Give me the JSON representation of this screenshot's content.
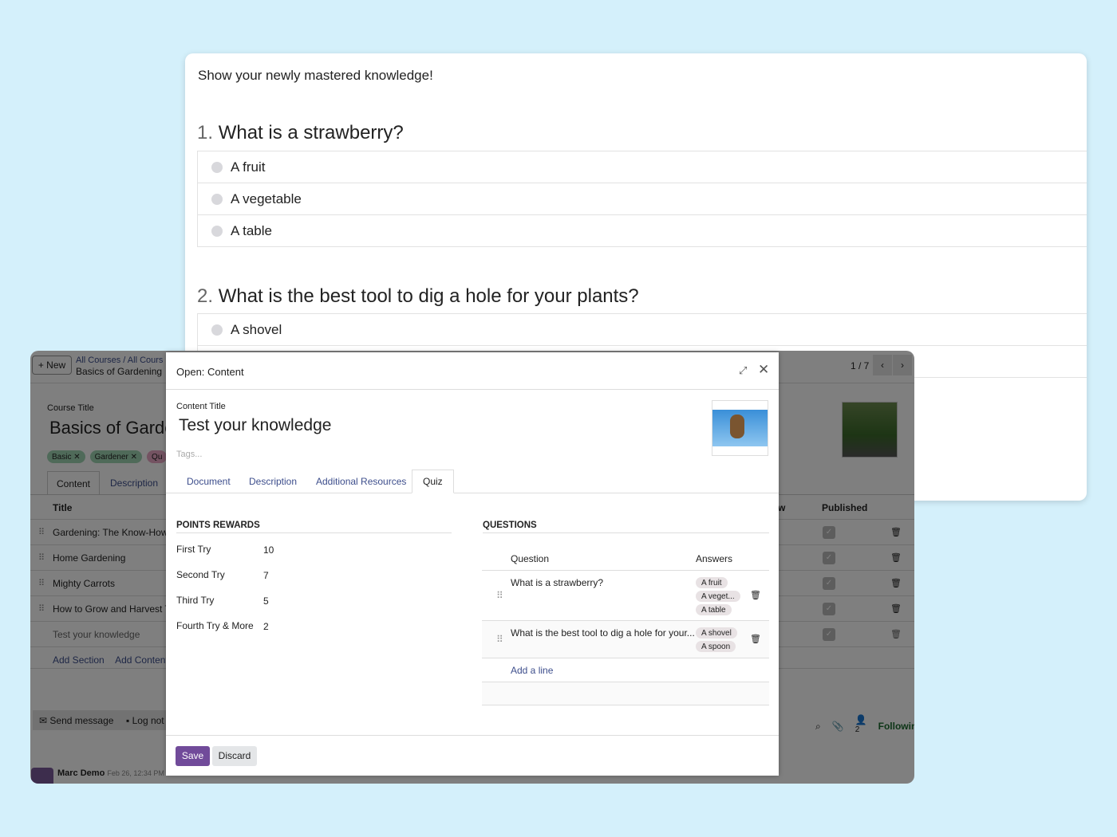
{
  "quiz_preview": {
    "intro": "Show your newly mastered knowledge!",
    "questions": [
      {
        "number": "1.",
        "text": "What is a strawberry?",
        "options": [
          "A fruit",
          "A vegetable",
          "A table"
        ]
      },
      {
        "number": "2.",
        "text": "What is the best tool to dig a hole for your plants?",
        "options": [
          "A shovel"
        ]
      }
    ]
  },
  "backend": {
    "new_label": "New",
    "breadcrumb": "All Courses  /  All Cours",
    "record_name": "Basics of Gardening",
    "pager": "1 / 7",
    "course_title_label": "Course Title",
    "course_title": "Basics of Garde",
    "tags": [
      {
        "label": "Basic",
        "color": "#9fd4b3"
      },
      {
        "label": "Gardener",
        "color": "#9fd4b3"
      },
      {
        "label": "Qu",
        "color": "#e8a6c4"
      }
    ],
    "tabs": [
      "Content",
      "Description"
    ],
    "col_title": "Title",
    "col_w": "w",
    "col_published": "Published",
    "rows": [
      "Gardening: The Know-How",
      "Home Gardening",
      "Mighty Carrots",
      "How to Grow and Harvest Th",
      "Test your knowledge"
    ],
    "add_section": "Add Section",
    "add_content": "Add Content",
    "send_message": "Send message",
    "log_note": "Log not",
    "following": "Following",
    "followers_count": "2",
    "author": "Marc Demo",
    "timestamp": "Feb 26, 12:34 PM"
  },
  "modal": {
    "title": "Open: Content",
    "content_title_label": "Content Title",
    "content_title": "Test your knowledge",
    "tags_placeholder": "Tags...",
    "tabs": [
      "Document",
      "Description",
      "Additional Resources",
      "Quiz"
    ],
    "active_tab": "Quiz",
    "points_header": "POINTS REWARDS",
    "points": [
      {
        "label": "First Try",
        "value": "10"
      },
      {
        "label": "Second Try",
        "value": "7"
      },
      {
        "label": "Third Try",
        "value": "5"
      },
      {
        "label": "Fourth Try & More",
        "value": "2"
      }
    ],
    "questions_header": "QUESTIONS",
    "col_question": "Question",
    "col_answers": "Answers",
    "questions": [
      {
        "text": "What is a strawberry?",
        "answers": [
          "A fruit",
          "A veget...",
          "A table"
        ]
      },
      {
        "text": "What is the best tool to dig a hole for your...",
        "answers": [
          "A shovel",
          "A spoon"
        ]
      }
    ],
    "add_line": "Add a line",
    "save": "Save",
    "discard": "Discard",
    "accent": "#714b9a"
  }
}
